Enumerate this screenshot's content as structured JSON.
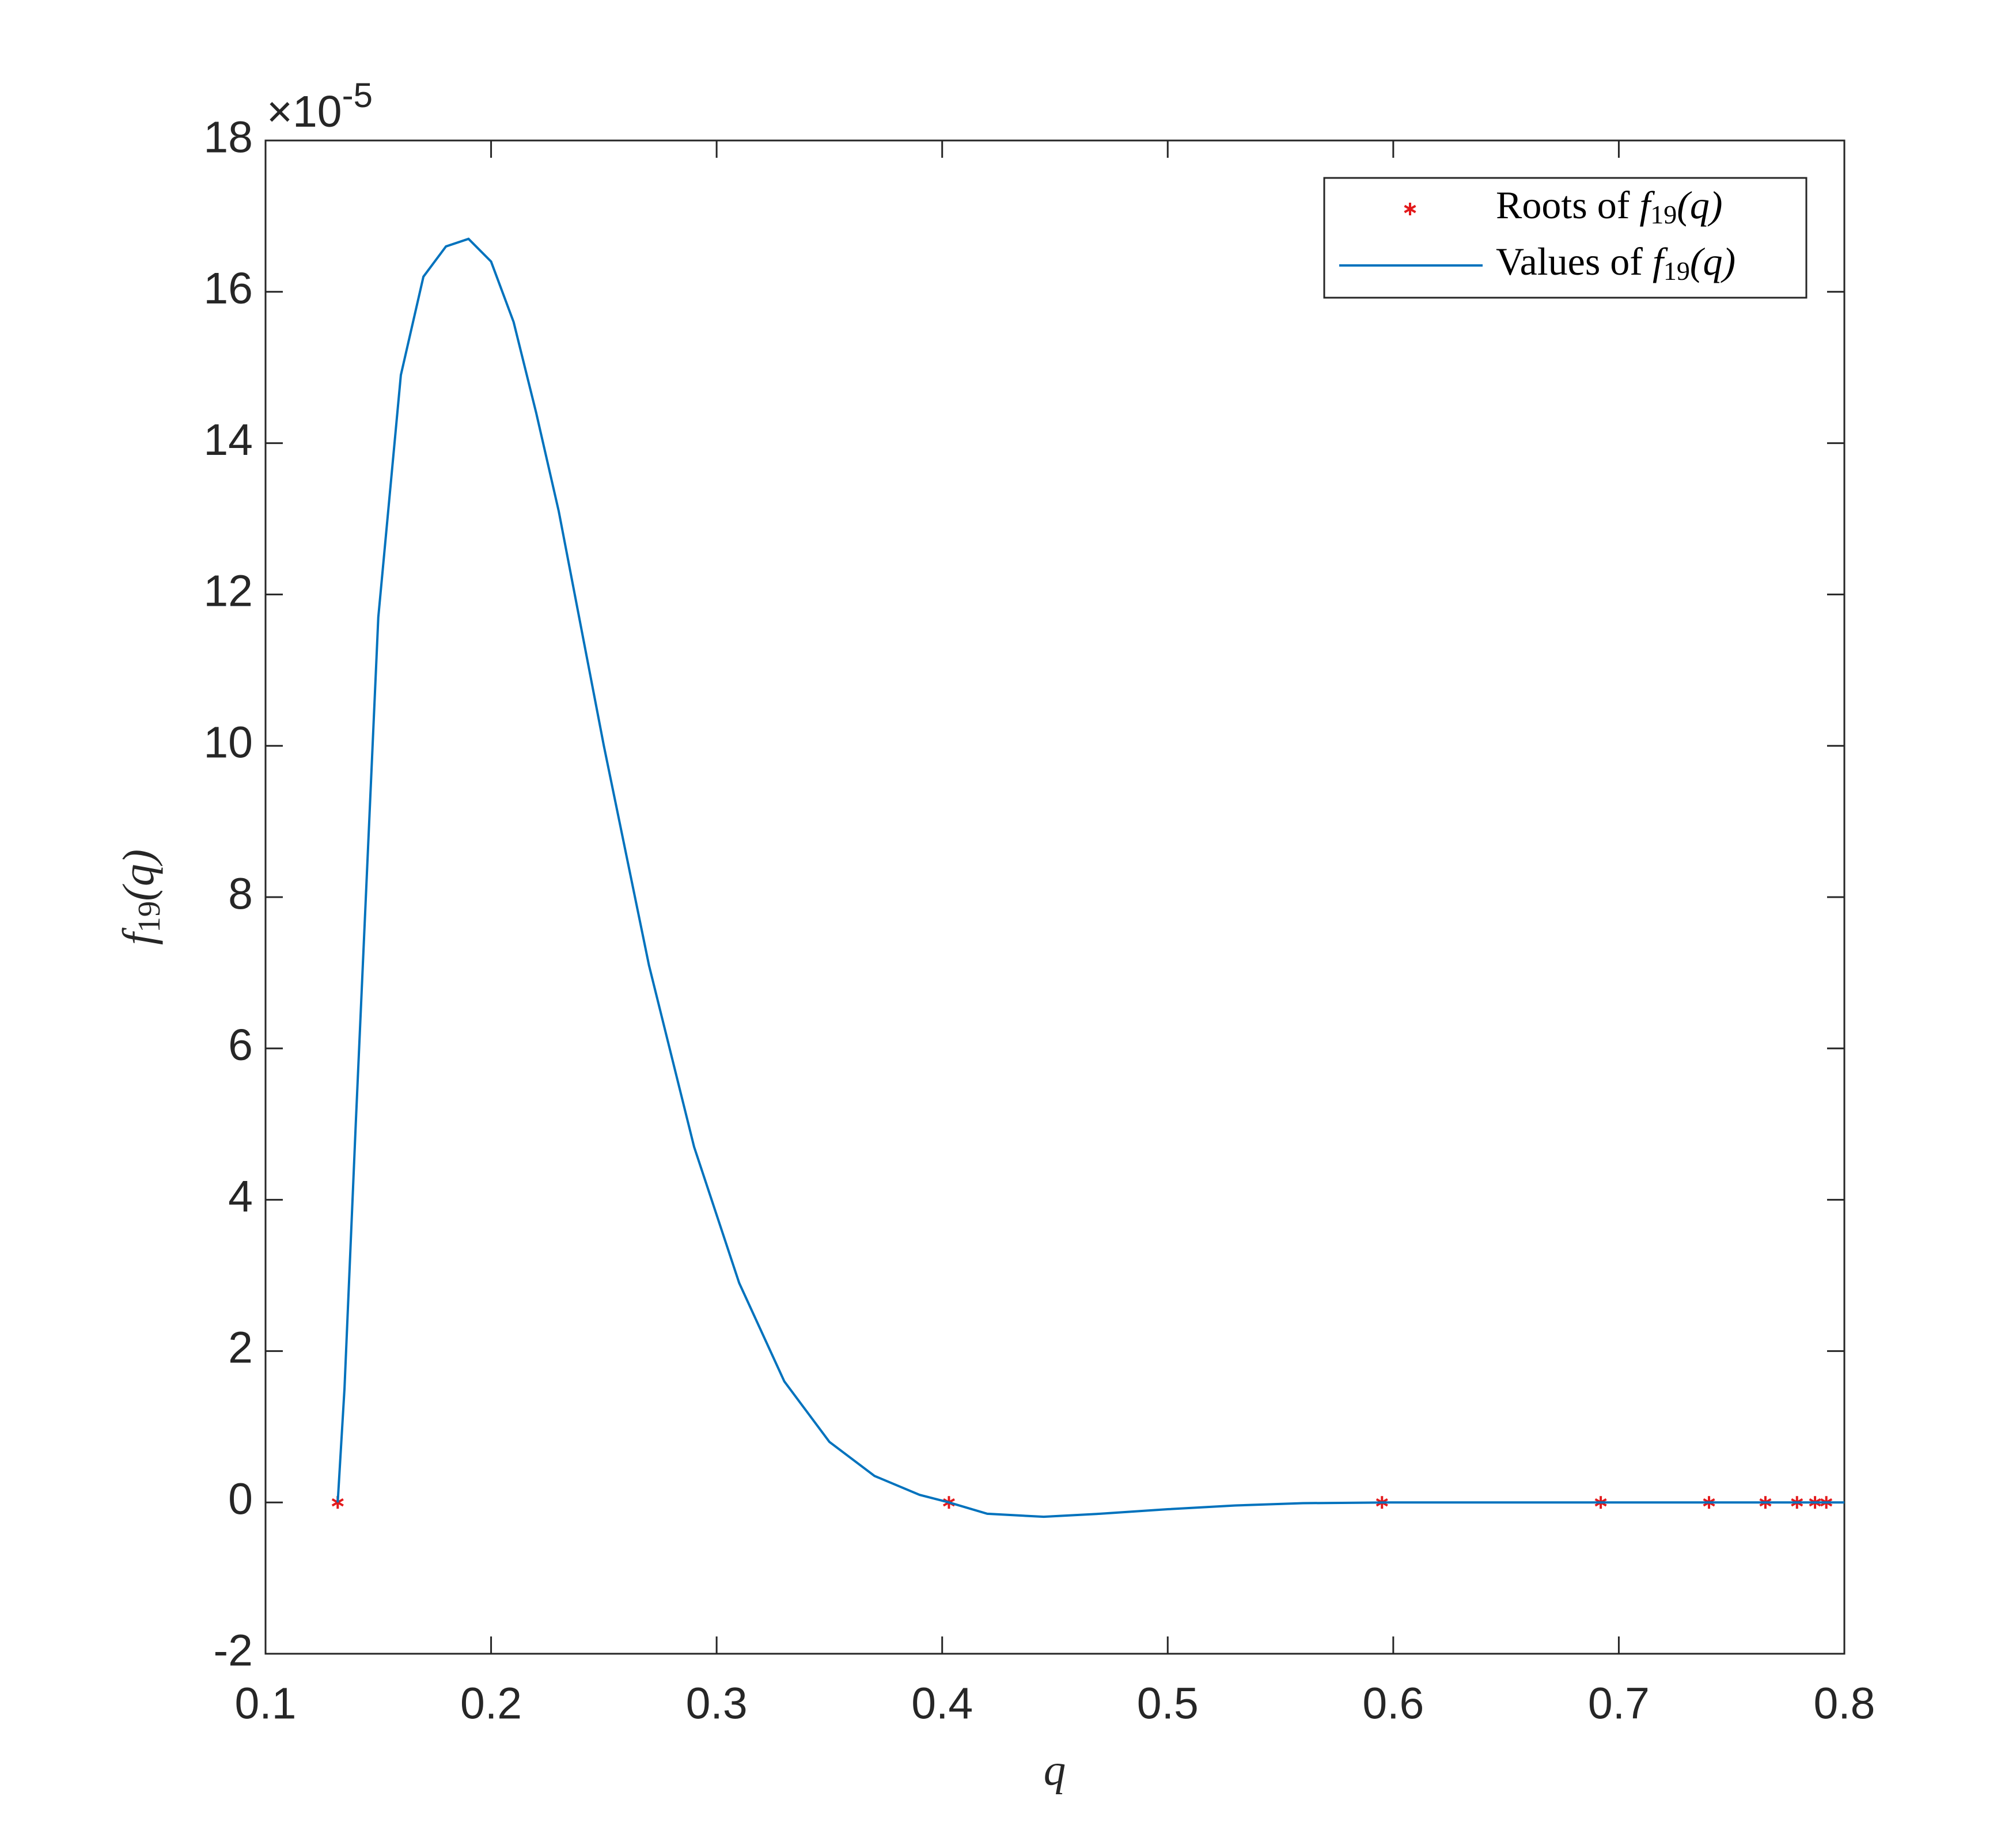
{
  "chart_data": {
    "type": "line",
    "xlabel": "q",
    "ylabel": [
      "f",
      "19",
      "(q)"
    ],
    "y_multiplier": [
      "×10",
      "-5"
    ],
    "xlim": [
      0.1,
      0.8
    ],
    "xticks": [
      0.1,
      0.2,
      0.3,
      0.4,
      0.5,
      0.6,
      0.7,
      0.8
    ],
    "ylim": [
      -2,
      18
    ],
    "yticks": [
      -2,
      0,
      2,
      4,
      6,
      8,
      10,
      12,
      14,
      16,
      18
    ],
    "legend": "northeast",
    "series": [
      {
        "name": [
          "Roots of ",
          "f",
          "19",
          "(q)"
        ],
        "type": "scatter",
        "color": "#e31a1c",
        "x": [
          0.132,
          0.403,
          0.595,
          0.692,
          0.74,
          0.765,
          0.779,
          0.787,
          0.792
        ],
        "values": [
          0,
          0,
          0,
          0,
          0,
          0,
          0,
          0,
          0
        ]
      },
      {
        "name": [
          "Values of ",
          "f",
          "19",
          "(q)"
        ],
        "type": "line",
        "color": "#0072bd",
        "x": [
          0.132,
          0.135,
          0.14,
          0.15,
          0.16,
          0.17,
          0.18,
          0.19,
          0.2,
          0.21,
          0.22,
          0.23,
          0.25,
          0.27,
          0.29,
          0.31,
          0.33,
          0.35,
          0.37,
          0.39,
          0.403,
          0.42,
          0.445,
          0.47,
          0.5,
          0.53,
          0.56,
          0.6,
          0.65,
          0.7,
          0.75,
          0.8
        ],
        "values": [
          0,
          1.5,
          5.0,
          11.7,
          14.9,
          16.2,
          16.6,
          16.7,
          16.4,
          15.6,
          14.4,
          13.1,
          10.0,
          7.1,
          4.7,
          2.9,
          1.6,
          0.8,
          0.35,
          0.1,
          0,
          -0.15,
          -0.19,
          -0.15,
          -0.09,
          -0.04,
          -0.01,
          0,
          0,
          0,
          0,
          0
        ]
      }
    ]
  }
}
